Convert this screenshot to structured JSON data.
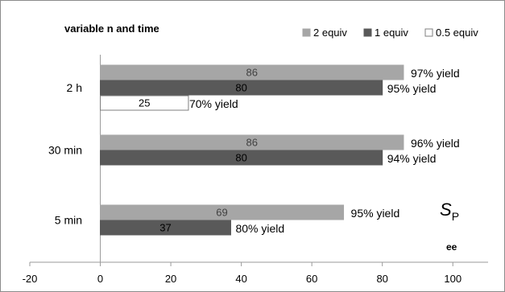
{
  "chart_data": {
    "type": "bar",
    "orientation": "horizontal",
    "title": "variable n and time",
    "categories": [
      "2 h",
      "30 min",
      "5 min"
    ],
    "series": [
      {
        "name": "2 equiv",
        "color": "#a6a6a6",
        "label_color": "#404040",
        "values": [
          86,
          86,
          69
        ],
        "yield_labels": [
          "97% yield",
          "96% yield",
          "95% yield"
        ]
      },
      {
        "name": "1 equiv",
        "color": "#595959",
        "label_color": "#000000",
        "values": [
          80,
          80,
          37
        ],
        "yield_labels": [
          "95% yield",
          "94% yield",
          "80% yield"
        ]
      },
      {
        "name": "0.5 equiv",
        "color": "#ffffff",
        "label_color": "#000000",
        "values": [
          25,
          null,
          null
        ],
        "yield_labels": [
          "70% yield",
          null,
          null
        ]
      }
    ],
    "xlim": [
      -20,
      110
    ],
    "xticks": [
      -20,
      0,
      20,
      40,
      60,
      80,
      100
    ],
    "legend_position": "top-right",
    "annotations": {
      "sp_main": "S",
      "sp_sub": "P",
      "ee": "ee"
    }
  }
}
